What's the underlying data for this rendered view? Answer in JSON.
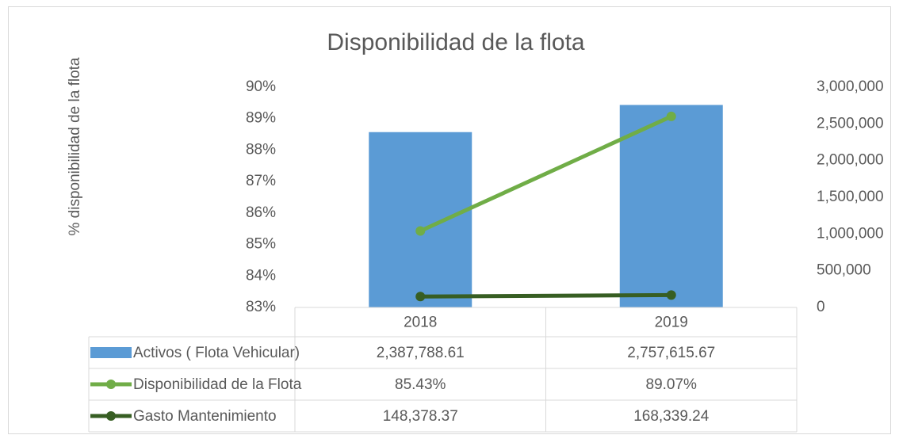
{
  "chart_data": {
    "type": "bar",
    "title": "Disponibilidad de la flota",
    "y_label": "% disponibilidad de la flota",
    "categories": [
      "2018",
      "2019"
    ],
    "ylim": [
      83,
      90
    ],
    "yticks": [
      {
        "value": 83,
        "label": "83%"
      },
      {
        "value": 84,
        "label": "84%"
      },
      {
        "value": 85,
        "label": "85%"
      },
      {
        "value": 86,
        "label": "86%"
      },
      {
        "value": 87,
        "label": "87%"
      },
      {
        "value": 88,
        "label": "88%"
      },
      {
        "value": 89,
        "label": "89%"
      },
      {
        "value": 90,
        "label": "90%"
      }
    ],
    "y2lim": [
      0,
      3000000
    ],
    "y2ticks": [
      0,
      {
        "value": 500000,
        "label": "500,000"
      },
      {
        "value": 1000000,
        "label": "1,000,000"
      },
      {
        "value": 1500000,
        "label": "1,500,000"
      },
      {
        "value": 2000000,
        "label": "2,000,000"
      },
      {
        "value": 2500000,
        "label": "2,500,000"
      },
      {
        "value": 3000000,
        "label": "3,000,000"
      }
    ],
    "series": [
      {
        "name": "Activos ( Flota Vehicular)",
        "type": "bar",
        "axis": "y2",
        "color": "#5b9bd5",
        "values": [
          2387788.61,
          2757615.67
        ],
        "value_labels": [
          "2,387,788.61",
          "2,757,615.67"
        ]
      },
      {
        "name": "Disponibilidad de la Flota",
        "type": "line",
        "axis": "y",
        "color": "#70ad47",
        "values": [
          85.43,
          89.07
        ],
        "value_labels": [
          "85.43%",
          "89.07%"
        ]
      },
      {
        "name": "Gasto Mantenimiento",
        "type": "line",
        "axis": "y2",
        "color": "#375e23",
        "values": [
          148378.37,
          168339.24
        ],
        "value_labels": [
          "148,378.37",
          "168,339.24"
        ]
      }
    ]
  }
}
